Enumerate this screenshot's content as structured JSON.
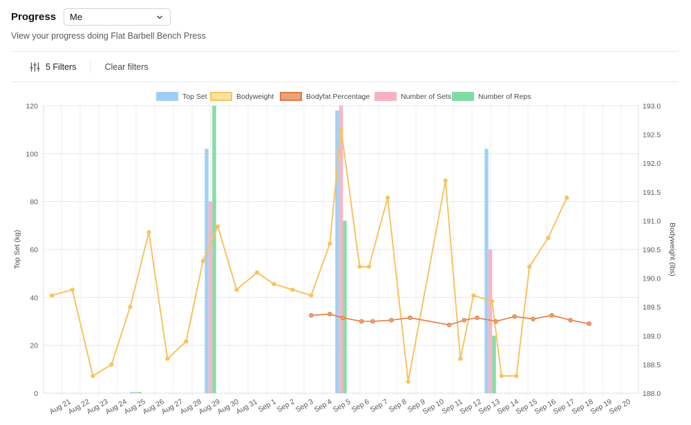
{
  "header": {
    "title": "Progress",
    "select_value": "Me",
    "subtitle": "View your progress doing Flat Barbell Bench Press"
  },
  "filters": {
    "filters_label": "5 Filters",
    "clear_label": "Clear filters"
  },
  "icons": {
    "filters": "sliders-icon",
    "dropdown": "chevron-down-icon"
  },
  "chart_data": {
    "type": "bar",
    "categories": [
      "Aug 21",
      "Aug 22",
      "Aug 23",
      "Aug 24",
      "Aug 25",
      "Aug 26",
      "Aug 27",
      "Aug 28",
      "Aug 29",
      "Aug 30",
      "Aug 31",
      "Sep 1",
      "Sep 2",
      "Sep 3",
      "Sep 4",
      "Sep 5",
      "Sep 6",
      "Sep 7",
      "Sep 8",
      "Sep 9",
      "Sep 10",
      "Sep 11",
      "Sep 12",
      "Sep 13",
      "Sep 14",
      "Sep 15",
      "Sep 16",
      "Sep 17",
      "Sep 18",
      "Sep 19",
      "Sep 20"
    ],
    "ylabel": "Top Set (kg)",
    "ylabel_right": "Bodyweight (lbs)",
    "ylim": [
      0,
      120
    ],
    "yticks": [
      0,
      20,
      40,
      60,
      80,
      100,
      120
    ],
    "ylim_right": [
      188.0,
      193.0
    ],
    "yticks_right": [
      "188.0",
      "188.5",
      "189.0",
      "189.5",
      "190.0",
      "190.5",
      "191.0",
      "191.5",
      "192.0",
      "192.5",
      "193.0"
    ],
    "legend": [
      "Top Set",
      "Bodyweight",
      "Bodyfat Percentage",
      "Number of Sets",
      "Number of Reps"
    ],
    "legend_position": "top",
    "grid": true,
    "colors": {
      "top_set": "#9dcff3",
      "bodyweight": "#f8c35f",
      "bodyfat": "#e47a3c",
      "bodyfat_fill": "#eaa37a",
      "sets": "#f9b1c2",
      "reps": "#7fdca4",
      "legend_bodyweight_fill": "#fde39f"
    },
    "bar_series": [
      {
        "name": "Top Set",
        "points": [
          [
            "Aug 25",
            0.5
          ],
          [
            "Aug 29",
            102
          ],
          [
            "Sep 5",
            118
          ],
          [
            "Sep 13",
            102
          ]
        ]
      },
      {
        "name": "Number of Sets",
        "points": [
          [
            "Aug 25",
            0.5
          ],
          [
            "Aug 29",
            80
          ],
          [
            "Sep 5",
            120
          ],
          [
            "Sep 13",
            60
          ]
        ]
      },
      {
        "name": "Number of Reps",
        "points": [
          [
            "Aug 25",
            0.5
          ],
          [
            "Aug 29",
            120
          ],
          [
            "Sep 5",
            72
          ],
          [
            "Sep 13",
            24
          ]
        ]
      }
    ],
    "line_series": [
      {
        "name": "Bodyweight",
        "axis": "right",
        "points": [
          [
            0.0,
            189.7
          ],
          [
            1.1,
            189.8
          ],
          [
            2.2,
            188.3
          ],
          [
            3.2,
            188.5
          ],
          [
            4.2,
            189.5
          ],
          [
            5.2,
            190.8
          ],
          [
            6.2,
            188.6
          ],
          [
            7.2,
            188.9
          ],
          [
            8.1,
            190.3
          ],
          [
            8.9,
            190.9
          ],
          [
            9.9,
            189.8
          ],
          [
            11.0,
            190.1
          ],
          [
            11.9,
            189.9
          ],
          [
            12.9,
            189.8
          ],
          [
            13.9,
            189.7
          ],
          [
            14.9,
            190.6
          ],
          [
            15.5,
            192.6
          ],
          [
            16.5,
            190.2
          ],
          [
            17.0,
            190.2
          ],
          [
            18.0,
            191.4
          ],
          [
            19.1,
            188.2
          ],
          [
            21.1,
            191.7
          ],
          [
            21.9,
            188.6
          ],
          [
            22.6,
            189.7
          ],
          [
            23.6,
            189.6
          ],
          [
            24.1,
            188.3
          ],
          [
            24.9,
            188.3
          ],
          [
            25.6,
            190.2
          ],
          [
            26.6,
            190.7
          ],
          [
            27.6,
            191.4
          ]
        ]
      },
      {
        "name": "Bodyfat Percentage",
        "axis": "left",
        "points": [
          [
            13.9,
            32.5
          ],
          [
            14.9,
            33
          ],
          [
            15.6,
            31.5
          ],
          [
            16.6,
            30
          ],
          [
            17.2,
            30
          ],
          [
            18.2,
            30.5
          ],
          [
            19.2,
            31.5
          ],
          [
            21.3,
            28.5
          ],
          [
            22.1,
            30.5
          ],
          [
            22.8,
            31.5
          ],
          [
            23.8,
            30
          ],
          [
            24.8,
            32
          ],
          [
            25.8,
            31
          ],
          [
            26.8,
            32.5
          ],
          [
            27.8,
            30.5
          ],
          [
            28.8,
            29
          ]
        ]
      }
    ]
  }
}
